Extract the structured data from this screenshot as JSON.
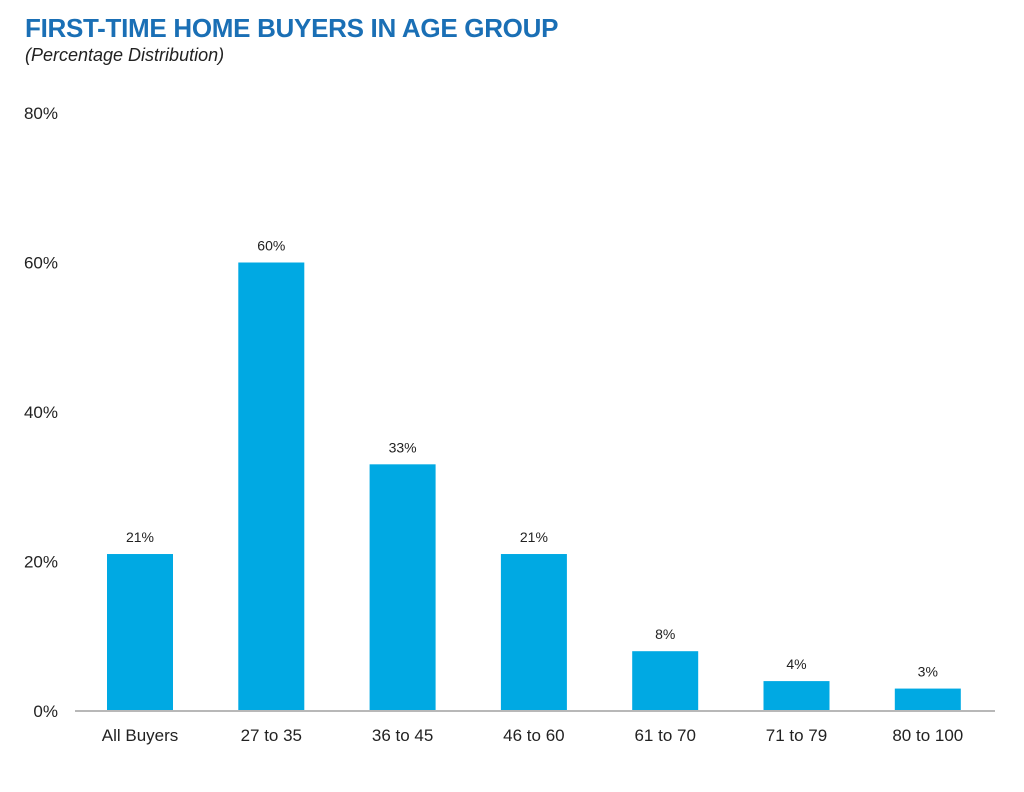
{
  "header": {
    "title": "FIRST-TIME HOME BUYERS IN AGE GROUP",
    "subtitle": "(Percentage Distribution)"
  },
  "colors": {
    "title": "#1a6fb5",
    "bar": "#00a9e3",
    "axis": "#b8b8b8",
    "text": "#222222"
  },
  "chart_data": {
    "type": "bar",
    "title": "FIRST-TIME HOME BUYERS IN AGE GROUP",
    "subtitle": "(Percentage Distribution)",
    "categories": [
      "All Buyers",
      "27 to 35",
      "36 to 45",
      "46 to 60",
      "61 to 70",
      "71 to 79",
      "80 to 100"
    ],
    "values": [
      21,
      60,
      33,
      21,
      8,
      4,
      3
    ],
    "data_labels": [
      "21%",
      "60%",
      "33%",
      "21%",
      "8%",
      "4%",
      "3%"
    ],
    "y_ticks": [
      0,
      20,
      40,
      60,
      80
    ],
    "y_tick_labels": [
      "0%",
      "20%",
      "40%",
      "60%",
      "80%"
    ],
    "ylim": [
      0,
      80
    ],
    "grid": false,
    "legend": "none"
  }
}
